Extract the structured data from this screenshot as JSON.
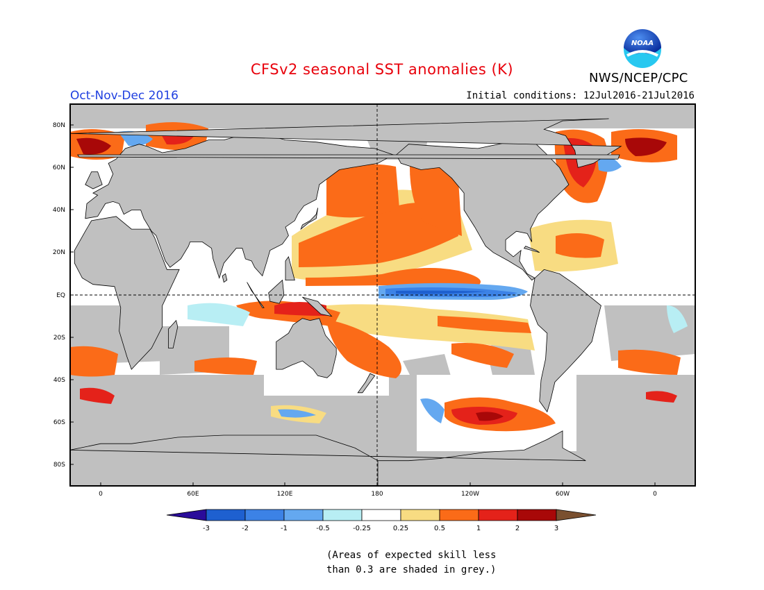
{
  "header": {
    "title": "CFSv2 seasonal SST anomalies (K)",
    "organization": "NWS/NCEP/CPC",
    "logo_text": "NOAA",
    "season": "Oct-Nov-Dec 2016",
    "initial_conditions": "Initial conditions: 12Jul2016-21Jul2016"
  },
  "colors": {
    "title": "#e8000b",
    "season": "#1f3fe0",
    "land": "#c0c0c0",
    "skill_mask": "#c0c0c0",
    "ocean_neutral": "#ffffff"
  },
  "map": {
    "projection": "cylindrical equidistant",
    "lon_labels": [
      "0",
      "60E",
      "120E",
      "180",
      "120W",
      "60W",
      "0"
    ],
    "lat_labels": [
      "80N",
      "60N",
      "40N",
      "20N",
      "EQ",
      "20S",
      "40S",
      "60S",
      "80S"
    ],
    "reference_lines": [
      "EQ",
      "180"
    ]
  },
  "colorbar": {
    "labels": [
      "-3",
      "-2",
      "-1",
      "-0.5",
      "-0.25",
      "0.25",
      "0.5",
      "1",
      "2",
      "3"
    ],
    "colors": [
      "#2a0c9a",
      "#1e60d0",
      "#3c82e6",
      "#64a8f0",
      "#b8eef4",
      "#ffffff",
      "#f8dc82",
      "#fb6b18",
      "#e4221a",
      "#a80808",
      "#7a5030"
    ]
  },
  "anomaly_regions": [
    {
      "name": "equatorial-cold-tongue",
      "level": "-1"
    },
    {
      "name": "north-pacific-warm-band",
      "level": "0.5"
    },
    {
      "name": "southern-ocean-warm-pool",
      "level": "2"
    },
    {
      "name": "north-atlantic-warm",
      "level": "2"
    }
  ],
  "note": [
    "(Areas of expected skill less",
    "than 0.3 are shaded in grey.)"
  ]
}
